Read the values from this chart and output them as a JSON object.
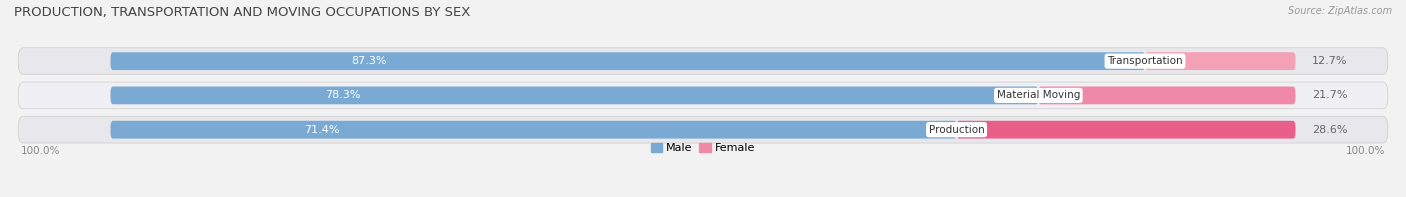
{
  "title": "PRODUCTION, TRANSPORTATION AND MOVING OCCUPATIONS BY SEX",
  "source": "Source: ZipAtlas.com",
  "categories": [
    "Transportation",
    "Material Moving",
    "Production"
  ],
  "male_pct": [
    87.3,
    78.3,
    71.4
  ],
  "female_pct": [
    12.7,
    21.7,
    28.6
  ],
  "male_color_light": "#b8cfe8",
  "male_color_bar": "#7aaad4",
  "female_color_light": "#f5b8cb",
  "female_color_bar_0": "#f4a0b5",
  "female_color_bar_1": "#f088a8",
  "female_color_bar_2": "#e8608a",
  "row_bg_odd": "#e8e8ec",
  "row_bg_even": "#f0f0f4",
  "bg_color": "#f2f2f2",
  "title_color": "#444444",
  "label_text_color": "#ffffff",
  "female_pct_color": "#555555",
  "axis_label_color": "#888888",
  "axis_label_left": "100.0%",
  "axis_label_right": "100.0%",
  "legend_male": "Male",
  "legend_female": "Female",
  "title_fontsize": 9.5,
  "bar_fontsize": 8,
  "legend_fontsize": 8,
  "bar_height": 0.52
}
